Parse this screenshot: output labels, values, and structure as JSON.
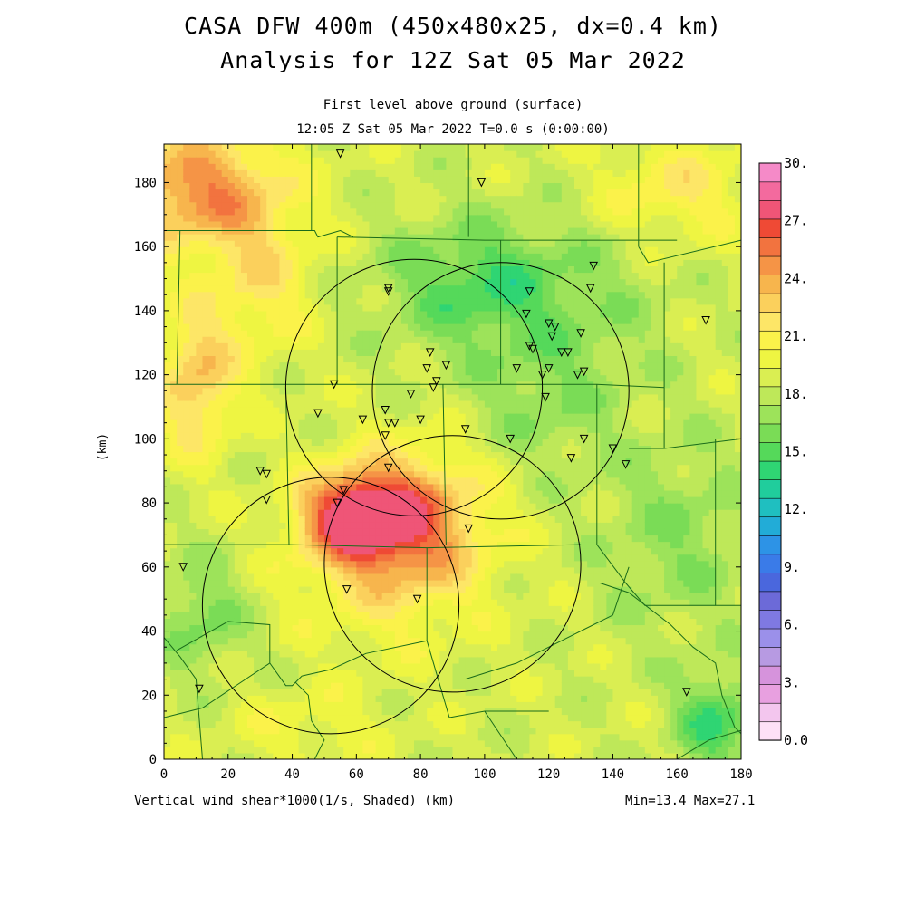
{
  "titles": {
    "line1": "CASA DFW 400m (450x480x25, dx=0.4 km)",
    "line2": "Analysis for 12Z Sat 05 Mar 2022",
    "sub1": "First level above ground (surface)",
    "sub2": "12:05 Z Sat 05 Mar 2022   T=0.0 s (0:00:00)",
    "footer_left": "Vertical wind shear*1000(1/s, Shaded)  (km)",
    "footer_right": "Min=13.4 Max=27.1",
    "ylabel": "(km)"
  },
  "chart_data": {
    "type": "heatmap",
    "title": "Analysis for 12Z Sat 05 Mar 2022",
    "xlabel": "(km)",
    "ylabel": "(km)",
    "xlim": [
      0,
      180
    ],
    "ylim": [
      0,
      192
    ],
    "xticks": [
      0,
      20,
      40,
      60,
      80,
      100,
      120,
      140,
      160,
      180
    ],
    "yticks": [
      0,
      20,
      40,
      60,
      80,
      100,
      120,
      140,
      160,
      180
    ],
    "field": "Vertical wind shear*1000 (1/s)",
    "min": 13.4,
    "max": 27.1,
    "colorbar": {
      "ticks": [
        "0.0",
        "3.",
        "6.",
        "9.",
        "12.",
        "15.",
        "18.",
        "21.",
        "24.",
        "27.",
        "30."
      ],
      "colors": [
        "#fde0f7",
        "#f3c6ee",
        "#e8a0e0",
        "#d693dc",
        "#b79ae2",
        "#9b90ea",
        "#7f79e2",
        "#6c6ad8",
        "#4a67dd",
        "#3a7be8",
        "#2d93e6",
        "#22acd7",
        "#1fbfc0",
        "#20cd9c",
        "#2fd573",
        "#55d95a",
        "#7adc56",
        "#9de35a",
        "#bee859",
        "#daee52",
        "#eef542",
        "#fbf24a",
        "#fde667",
        "#fbd05c",
        "#f7b54d",
        "#f59446",
        "#f2733f",
        "#ef4a35",
        "#ef5577",
        "#f36a9e",
        "#f58ac8"
      ]
    },
    "field_blobs": [
      {
        "x": 60,
        "y": 76,
        "sx": 16,
        "sy": 13,
        "amp": 8.4
      },
      {
        "x": 78,
        "y": 76,
        "sx": 22,
        "sy": 20,
        "amp": 5.0
      },
      {
        "x": 70,
        "y": 62,
        "sx": 30,
        "sy": 26,
        "amp": 3.0
      },
      {
        "x": 10,
        "y": 178,
        "sx": 26,
        "sy": 18,
        "amp": 6.3
      },
      {
        "x": 30,
        "y": 150,
        "sx": 16,
        "sy": 24,
        "amp": 3.0
      },
      {
        "x": 10,
        "y": 118,
        "sx": 12,
        "sy": 22,
        "amp": 4.6
      },
      {
        "x": 160,
        "y": 178,
        "sx": 22,
        "sy": 16,
        "amp": 2.8
      },
      {
        "x": 100,
        "y": 148,
        "sx": 30,
        "sy": 20,
        "amp": -4.0
      },
      {
        "x": 118,
        "y": 112,
        "sx": 22,
        "sy": 22,
        "amp": -2.0
      },
      {
        "x": 160,
        "y": 70,
        "sx": 24,
        "sy": 30,
        "amp": -2.0
      },
      {
        "x": 172,
        "y": 12,
        "sx": 12,
        "sy": 14,
        "amp": -4.2
      },
      {
        "x": 12,
        "y": 45,
        "sx": 14,
        "sy": 18,
        "amp": -2.6
      },
      {
        "x": 45,
        "y": 10,
        "sx": 26,
        "sy": 12,
        "amp": 1.4
      },
      {
        "x": 140,
        "y": 140,
        "sx": 22,
        "sy": 24,
        "amp": -1.0
      }
    ],
    "field_base": 18.6,
    "radar_rings": [
      {
        "x": 78,
        "y": 116,
        "r": 40
      },
      {
        "x": 105,
        "y": 115,
        "r": 40
      },
      {
        "x": 90,
        "y": 61,
        "r": 40
      },
      {
        "x": 52,
        "y": 48,
        "r": 40
      }
    ],
    "stations": [
      [
        55,
        189
      ],
      [
        99,
        180
      ],
      [
        134,
        154
      ],
      [
        70,
        147
      ],
      [
        70,
        146
      ],
      [
        114,
        146
      ],
      [
        133,
        147
      ],
      [
        113,
        139
      ],
      [
        120,
        136
      ],
      [
        122,
        135
      ],
      [
        121,
        132
      ],
      [
        169,
        137
      ],
      [
        83,
        127
      ],
      [
        114,
        129
      ],
      [
        115,
        128
      ],
      [
        124,
        127
      ],
      [
        126,
        127
      ],
      [
        130,
        133
      ],
      [
        88,
        123
      ],
      [
        82,
        122
      ],
      [
        110,
        122
      ],
      [
        120,
        122
      ],
      [
        118,
        120
      ],
      [
        131,
        121
      ],
      [
        129,
        120
      ],
      [
        53,
        117
      ],
      [
        85,
        118
      ],
      [
        84,
        116
      ],
      [
        77,
        114
      ],
      [
        119,
        113
      ],
      [
        48,
        108
      ],
      [
        62,
        106
      ],
      [
        69,
        109
      ],
      [
        70,
        105
      ],
      [
        72,
        105
      ],
      [
        80,
        106
      ],
      [
        94,
        103
      ],
      [
        69,
        101
      ],
      [
        108,
        100
      ],
      [
        131,
        100
      ],
      [
        140,
        97
      ],
      [
        127,
        94
      ],
      [
        144,
        92
      ],
      [
        70,
        91
      ],
      [
        30,
        90
      ],
      [
        32,
        89
      ],
      [
        56,
        84
      ],
      [
        32,
        81
      ],
      [
        54,
        80
      ],
      [
        95,
        72
      ],
      [
        6,
        60
      ],
      [
        57,
        53
      ],
      [
        79,
        50
      ],
      [
        11,
        22
      ],
      [
        163,
        21
      ]
    ],
    "county_lines": [
      [
        [
          0,
          165
        ],
        [
          47,
          165
        ],
        [
          48,
          163
        ],
        [
          55,
          165
        ],
        [
          59,
          163
        ]
      ],
      [
        [
          54,
          163
        ],
        [
          54,
          117
        ]
      ],
      [
        [
          54,
          163
        ],
        [
          100,
          162
        ],
        [
          160,
          162
        ]
      ],
      [
        [
          105,
          162
        ],
        [
          105,
          117
        ]
      ],
      [
        [
          95,
          192
        ],
        [
          95,
          163
        ]
      ],
      [
        [
          46,
          192
        ],
        [
          46,
          165
        ]
      ],
      [
        [
          5,
          165
        ],
        [
          4,
          117
        ]
      ],
      [
        [
          0,
          117
        ],
        [
          135,
          117
        ],
        [
          156,
          116
        ]
      ],
      [
        [
          38,
          116
        ],
        [
          39,
          67
        ],
        [
          0,
          67
        ]
      ],
      [
        [
          39,
          67
        ],
        [
          82,
          66
        ],
        [
          130,
          67
        ]
      ],
      [
        [
          87,
          117
        ],
        [
          88,
          67
        ]
      ],
      [
        [
          135,
          117
        ],
        [
          135,
          67
        ]
      ],
      [
        [
          156,
          155
        ],
        [
          156,
          116
        ]
      ],
      [
        [
          148,
          160
        ],
        [
          151,
          155
        ],
        [
          180,
          162
        ]
      ],
      [
        [
          148,
          192
        ],
        [
          148,
          160
        ]
      ],
      [
        [
          145,
          97
        ],
        [
          156,
          97
        ],
        [
          156,
          116
        ]
      ],
      [
        [
          156,
          97
        ],
        [
          180,
          100
        ]
      ],
      [
        [
          172,
          100
        ],
        [
          172,
          48
        ],
        [
          180,
          48
        ]
      ],
      [
        [
          135,
          67
        ],
        [
          144,
          55
        ],
        [
          150,
          48
        ],
        [
          172,
          48
        ]
      ],
      [
        [
          82,
          66
        ],
        [
          82,
          37
        ]
      ],
      [
        [
          82,
          37
        ],
        [
          63,
          33
        ],
        [
          52,
          28
        ],
        [
          43,
          26
        ]
      ],
      [
        [
          82,
          37
        ],
        [
          89,
          13
        ],
        [
          100,
          15
        ],
        [
          120,
          15
        ]
      ],
      [
        [
          100,
          15
        ],
        [
          108,
          3
        ],
        [
          110,
          0
        ]
      ],
      [
        [
          145,
          60
        ],
        [
          140,
          45
        ],
        [
          130,
          40
        ],
        [
          110,
          30
        ],
        [
          94,
          25
        ]
      ],
      [
        [
          43,
          26
        ],
        [
          40,
          23
        ],
        [
          38,
          23
        ],
        [
          33,
          30
        ],
        [
          33,
          42
        ],
        [
          20,
          43
        ],
        [
          4,
          34
        ]
      ],
      [
        [
          33,
          30
        ],
        [
          12,
          16
        ],
        [
          0,
          13
        ]
      ],
      [
        [
          0,
          38
        ],
        [
          5,
          32
        ],
        [
          10,
          25
        ],
        [
          12,
          0
        ]
      ],
      [
        [
          136,
          55
        ],
        [
          145,
          52
        ],
        [
          158,
          42
        ],
        [
          165,
          35
        ],
        [
          172,
          30
        ],
        [
          174,
          20
        ],
        [
          178,
          10
        ],
        [
          180,
          8
        ]
      ],
      [
        [
          160,
          0
        ],
        [
          170,
          6
        ],
        [
          180,
          9
        ]
      ],
      [
        [
          41,
          24
        ],
        [
          45,
          20
        ],
        [
          46,
          12
        ],
        [
          50,
          6
        ],
        [
          47,
          0
        ]
      ]
    ]
  }
}
